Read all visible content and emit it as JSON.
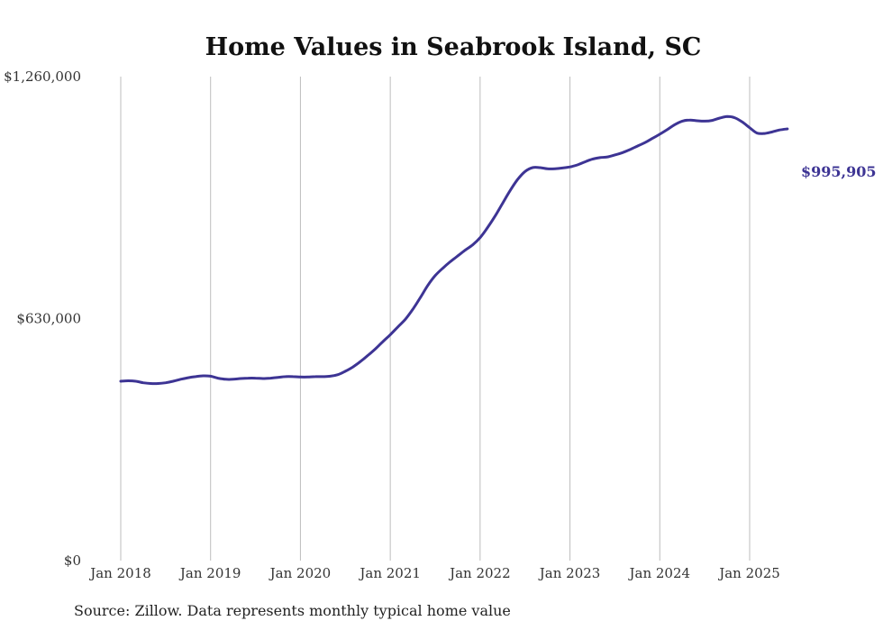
{
  "chart_data": {
    "type": "line",
    "title": "Home Values in Seabrook Island, SC",
    "source": "Source: Zillow. Data represents monthly typical home value",
    "ylim": [
      0,
      1260000
    ],
    "yticks": [
      "$1,260,000",
      "$630,000",
      "$0"
    ],
    "ytick_values": [
      1260000,
      630000,
      0
    ],
    "xticks": [
      "Jan 2018",
      "Jan 2019",
      "Jan 2020",
      "Jan 2021",
      "Jan 2022",
      "Jan 2023",
      "Jan 2024",
      "Jan 2025"
    ],
    "xtick_values": [
      2018.0,
      2019.0,
      2020.0,
      2021.0,
      2022.0,
      2023.0,
      2024.0,
      2025.0
    ],
    "xlim": [
      2018.0,
      2025.42
    ],
    "grid": "vertical",
    "line_color": "#3d3494",
    "end_label": "$995,905",
    "series": [
      {
        "x": [
          2018.0,
          2018.083,
          2018.167,
          2018.25,
          2018.333,
          2018.417,
          2018.5,
          2018.583,
          2018.667,
          2018.75,
          2018.833,
          2018.917,
          2019.0,
          2019.083,
          2019.167,
          2019.25,
          2019.333,
          2019.417,
          2019.5,
          2019.583,
          2019.667,
          2019.75,
          2019.833,
          2019.917,
          2020.0,
          2020.083,
          2020.167,
          2020.25,
          2020.333,
          2020.417,
          2020.5,
          2020.583,
          2020.667,
          2020.75,
          2020.833,
          2020.917,
          2021.0,
          2021.083,
          2021.167,
          2021.25,
          2021.333,
          2021.417,
          2021.5,
          2021.583,
          2021.667,
          2021.75,
          2021.833,
          2021.917,
          2022.0,
          2022.083,
          2022.167,
          2022.25,
          2022.333,
          2022.417,
          2022.5,
          2022.583,
          2022.667,
          2022.75,
          2022.833,
          2022.917,
          2023.0,
          2023.083,
          2023.167,
          2023.25,
          2023.333,
          2023.417,
          2023.5,
          2023.583,
          2023.667,
          2023.75,
          2023.833,
          2023.917,
          2024.0,
          2024.083,
          2024.167,
          2024.25,
          2024.333,
          2024.417,
          2024.5,
          2024.583,
          2024.667,
          2024.75,
          2024.833,
          2024.917,
          2025.0,
          2025.083,
          2025.167,
          2025.25,
          2025.333,
          2025.42
        ],
        "values": [
          467000,
          468000,
          467000,
          463000,
          461000,
          461000,
          463000,
          467000,
          472000,
          476000,
          479000,
          481000,
          480000,
          475000,
          472000,
          472000,
          474000,
          475000,
          475000,
          474000,
          475000,
          477000,
          479000,
          479000,
          478000,
          478000,
          479000,
          479000,
          480000,
          484000,
          493000,
          504000,
          518000,
          534000,
          551000,
          570000,
          588000,
          608000,
          628000,
          654000,
          684000,
          716000,
          742000,
          761000,
          778000,
          793000,
          808000,
          822000,
          841000,
          867000,
          897000,
          930000,
          963000,
          992000,
          1013000,
          1023000,
          1023000,
          1020000,
          1020000,
          1022000,
          1025000,
          1030000,
          1038000,
          1045000,
          1049000,
          1051000,
          1056000,
          1062000,
          1070000,
          1079000,
          1088000,
          1099000,
          1110000,
          1122000,
          1135000,
          1144000,
          1147000,
          1145000,
          1144000,
          1146000,
          1152000,
          1156000,
          1153000,
          1142000,
          1127000,
          1113000,
          1112000,
          1116000,
          1121000,
          995905
        ]
      }
    ]
  }
}
